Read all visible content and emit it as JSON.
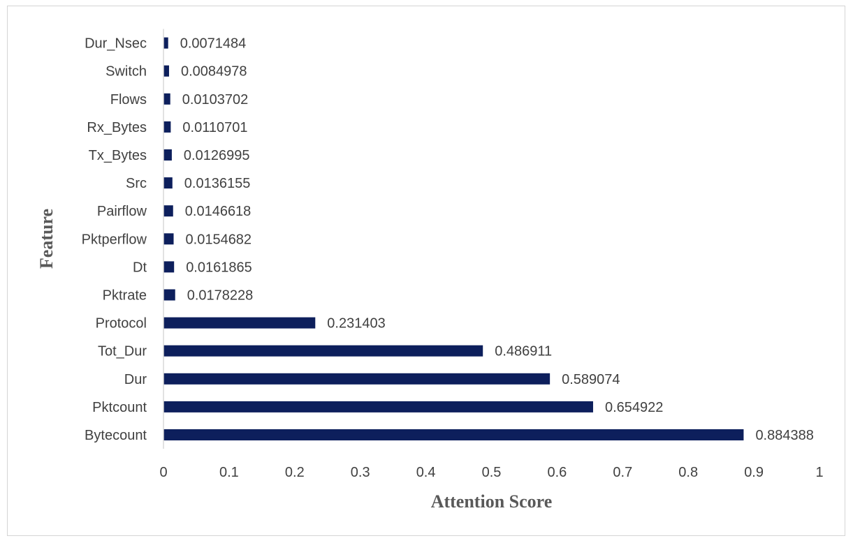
{
  "colors": {
    "bar": "#0d1f5c",
    "axis": "#d9d9d9",
    "text": "#404040",
    "title": "#595959"
  },
  "chart_data": {
    "type": "bar",
    "orientation": "horizontal",
    "xlabel": "Attention Score",
    "ylabel": "Feature",
    "xlim": [
      0,
      1
    ],
    "xticks": [
      "0",
      "0.1",
      "0.2",
      "0.3",
      "0.4",
      "0.5",
      "0.6",
      "0.7",
      "0.8",
      "0.9",
      "1"
    ],
    "grid": false,
    "legend": "none",
    "categories": [
      "Bytecount",
      "Pktcount",
      "Dur",
      "Tot_Dur",
      "Protocol",
      "Pktrate",
      "Dt",
      "Pktperflow",
      "Pairflow",
      "Src",
      "Tx_Bytes",
      "Rx_Bytes",
      "Flows",
      "Switch",
      "Dur_Nsec"
    ],
    "values": [
      0.884388,
      0.654922,
      0.589074,
      0.486911,
      0.231403,
      0.0178228,
      0.0161865,
      0.0154682,
      0.0146618,
      0.0136155,
      0.0126995,
      0.0110701,
      0.0103702,
      0.0084978,
      0.0071484
    ],
    "data_labels": [
      "0.884388",
      "0.654922",
      "0.589074",
      "0.486911",
      "0.231403",
      "0.0178228",
      "0.0161865",
      "0.0154682",
      "0.0146618",
      "0.0136155",
      "0.0126995",
      "0.0110701",
      "0.0103702",
      "0.0084978",
      "0.0071484"
    ]
  }
}
